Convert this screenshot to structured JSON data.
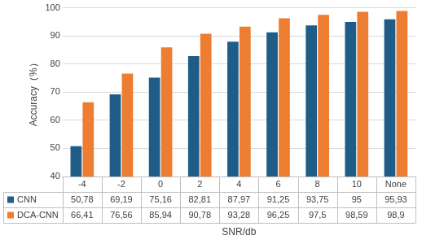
{
  "chart_data": {
    "type": "bar",
    "x_label": "SNR/db",
    "y_label": "Accuracy（%）",
    "categories": [
      "-4",
      "-2",
      "0",
      "2",
      "4",
      "6",
      "8",
      "10",
      "None"
    ],
    "series": [
      {
        "name": "CNN",
        "color": "#1f5c87",
        "values": [
          50.78,
          69.19,
          75.16,
          82.81,
          87.97,
          91.25,
          93.75,
          95,
          95.93
        ],
        "value_labels": [
          "50,78",
          "69,19",
          "75,16",
          "82,81",
          "87,97",
          "91,25",
          "93,75",
          "95",
          "95,93"
        ]
      },
      {
        "name": "DCA-CNN",
        "color": "#ed7d31",
        "values": [
          66.41,
          76.56,
          85.94,
          90.78,
          93.28,
          96.25,
          97.5,
          98.59,
          98.9
        ],
        "value_labels": [
          "66,41",
          "76,56",
          "85,94",
          "90,78",
          "93,28",
          "96,25",
          "97,5",
          "98,59",
          "98,9"
        ]
      }
    ],
    "ylim": [
      40,
      100
    ],
    "yticks": [
      40,
      50,
      60,
      70,
      80,
      90,
      100
    ],
    "grid": true
  }
}
